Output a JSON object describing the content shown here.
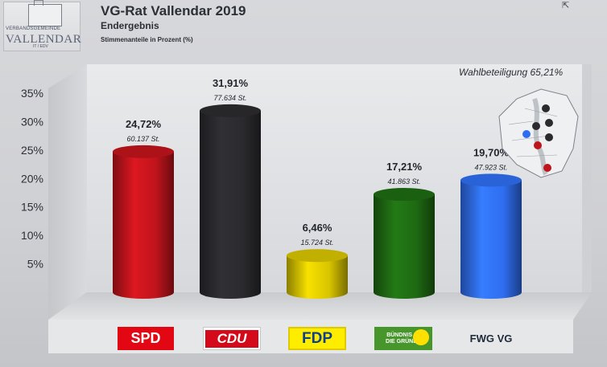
{
  "header": {
    "title": "VG-Rat Vallendar 2019",
    "subtitle": "Endergebnis",
    "unit": "Stimmenanteile in Prozent (%)",
    "turnout": "Wahlbeteiligung 65,21%"
  },
  "logo": {
    "small": "VERBANDSGEMEINDE",
    "big": "VALLENDAR",
    "tiny": "IT / EDV"
  },
  "chart_data": {
    "type": "bar",
    "title": "VG-Rat Vallendar 2019",
    "ylabel": "Stimmenanteile in Prozent (%)",
    "ylim": [
      0,
      35
    ],
    "yticks": [
      "5%",
      "10%",
      "15%",
      "20%",
      "25%",
      "30%",
      "35%"
    ],
    "ytick_values": [
      5,
      10,
      15,
      20,
      25,
      30,
      35
    ],
    "categories": [
      "SPD",
      "CDU",
      "FDP",
      "BÜNDNIS 90 DIE GRÜNEN",
      "FWG VG"
    ],
    "values": [
      24.72,
      31.91,
      6.46,
      17.21,
      19.7
    ],
    "value_labels": [
      "24,72%",
      "31,91%",
      "6,46%",
      "17,21%",
      "19,70%"
    ],
    "vote_labels": [
      "60.137 St.",
      "77.634 St.",
      "15.724 St.",
      "41.863 St.",
      "47.923 St."
    ],
    "colors": [
      "#c0141c",
      "#2b2a2e",
      "#d8c400",
      "#1e6a12",
      "#2f6df0"
    ],
    "grid": false
  },
  "legend": {
    "spd": "SPD",
    "cdu": "CDU",
    "fdp": "FDP",
    "gruene_line1": "BÜNDNIS 90",
    "gruene_line2": "DIE GRÜNEN",
    "fwg": "FWG VG"
  }
}
